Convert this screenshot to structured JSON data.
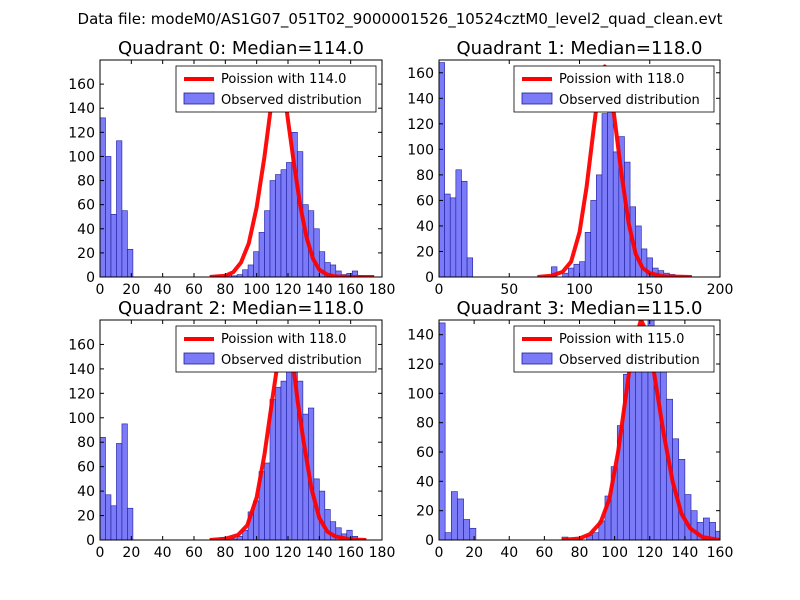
{
  "suptitle": "Data file: modeM0/AS1G07_051T02_9000001526_10524cztM0_level2_quad_clean.evt",
  "colors": {
    "bar_fill": "#7b7bf7",
    "bar_edge": "#1c1ca0",
    "line": "#ff0000",
    "axis": "#000000"
  },
  "chart_data": [
    {
      "type": "bar",
      "title": "Quadrant 0: Median=114.0",
      "median": 114.0,
      "legend": {
        "line_label": "Poission with 114.0",
        "bar_label": "Observed distribution",
        "placement": "top-right"
      },
      "xlim": [
        0,
        180
      ],
      "ylim": [
        0,
        180
      ],
      "xticks": [
        0,
        20,
        40,
        60,
        80,
        100,
        120,
        140,
        160,
        180
      ],
      "yticks": [
        0,
        20,
        40,
        60,
        80,
        100,
        120,
        140,
        160
      ],
      "bin_width": 3.5,
      "bins": [
        [
          0,
          132
        ],
        [
          3.5,
          100
        ],
        [
          7,
          52
        ],
        [
          10.5,
          113
        ],
        [
          14,
          55
        ],
        [
          17.5,
          23
        ],
        [
          73.5,
          1
        ],
        [
          80.5,
          2
        ],
        [
          84,
          1
        ],
        [
          87.5,
          2
        ],
        [
          91,
          6
        ],
        [
          94.5,
          10
        ],
        [
          98,
          21
        ],
        [
          101.5,
          37
        ],
        [
          105,
          55
        ],
        [
          108.5,
          80
        ],
        [
          112,
          85
        ],
        [
          115.5,
          89
        ],
        [
          119,
          95
        ],
        [
          122.5,
          120
        ],
        [
          126,
          104
        ],
        [
          129.5,
          60
        ],
        [
          133,
          55
        ],
        [
          136.5,
          40
        ],
        [
          140,
          21
        ],
        [
          143.5,
          12
        ],
        [
          147,
          10
        ],
        [
          150.5,
          5
        ],
        [
          154,
          2
        ],
        [
          157.5,
          3
        ],
        [
          161,
          5
        ],
        [
          164.5,
          1
        ]
      ],
      "poisson": [
        [
          70,
          0
        ],
        [
          80,
          1
        ],
        [
          85,
          4
        ],
        [
          90,
          12
        ],
        [
          95,
          28
        ],
        [
          100,
          58
        ],
        [
          105,
          100
        ],
        [
          108,
          130
        ],
        [
          111,
          160
        ],
        [
          114,
          172
        ],
        [
          117,
          160
        ],
        [
          120,
          130
        ],
        [
          124,
          92
        ],
        [
          128,
          58
        ],
        [
          132,
          32
        ],
        [
          136,
          15
        ],
        [
          140,
          6
        ],
        [
          145,
          2
        ],
        [
          150,
          0.5
        ],
        [
          160,
          0
        ],
        [
          175,
          0
        ]
      ]
    },
    {
      "type": "bar",
      "title": "Quadrant 1: Median=118.0",
      "median": 118.0,
      "legend": {
        "line_label": "Poission with 118.0",
        "bar_label": "Observed distribution",
        "placement": "top-right"
      },
      "xlim": [
        0,
        200
      ],
      "ylim": [
        0,
        170
      ],
      "xticks": [
        0,
        50,
        100,
        150,
        200
      ],
      "yticks": [
        0,
        20,
        40,
        60,
        80,
        100,
        120,
        140,
        160
      ],
      "bin_width": 4,
      "bins": [
        [
          0,
          168
        ],
        [
          4,
          65
        ],
        [
          8,
          62
        ],
        [
          12,
          84
        ],
        [
          16,
          75
        ],
        [
          20,
          15
        ],
        [
          80,
          8
        ],
        [
          88,
          3
        ],
        [
          92,
          7
        ],
        [
          96,
          10
        ],
        [
          100,
          12
        ],
        [
          104,
          35
        ],
        [
          108,
          60
        ],
        [
          112,
          80
        ],
        [
          116,
          128
        ],
        [
          120,
          160
        ],
        [
          124,
          98
        ],
        [
          128,
          110
        ],
        [
          132,
          90
        ],
        [
          136,
          55
        ],
        [
          140,
          40
        ],
        [
          144,
          22
        ],
        [
          148,
          15
        ],
        [
          152,
          7
        ],
        [
          156,
          5
        ],
        [
          160,
          3
        ],
        [
          164,
          2
        ],
        [
          168,
          1
        ],
        [
          172,
          1
        ]
      ],
      "poisson": [
        [
          70,
          0
        ],
        [
          80,
          1
        ],
        [
          88,
          4
        ],
        [
          94,
          12
        ],
        [
          100,
          35
        ],
        [
          105,
          70
        ],
        [
          110,
          115
        ],
        [
          114,
          150
        ],
        [
          118,
          165
        ],
        [
          122,
          150
        ],
        [
          126,
          115
        ],
        [
          130,
          80
        ],
        [
          135,
          42
        ],
        [
          140,
          18
        ],
        [
          145,
          7
        ],
        [
          150,
          3
        ],
        [
          160,
          0.5
        ],
        [
          180,
          0
        ]
      ]
    },
    {
      "type": "bar",
      "title": "Quadrant 2: Median=118.0",
      "median": 118.0,
      "legend": {
        "line_label": "Poission with 118.0",
        "bar_label": "Observed distribution",
        "placement": "top-right"
      },
      "xlim": [
        0,
        180
      ],
      "ylim": [
        0,
        180
      ],
      "xticks": [
        0,
        20,
        40,
        60,
        80,
        100,
        120,
        140,
        160,
        180
      ],
      "yticks": [
        0,
        20,
        40,
        60,
        80,
        100,
        120,
        140,
        160
      ],
      "bin_width": 3.5,
      "bins": [
        [
          0,
          84
        ],
        [
          3.5,
          37
        ],
        [
          7,
          28
        ],
        [
          10.5,
          79
        ],
        [
          14,
          95
        ],
        [
          17.5,
          26
        ],
        [
          77,
          2
        ],
        [
          84,
          1
        ],
        [
          87.5,
          3
        ],
        [
          91,
          8
        ],
        [
          94.5,
          23
        ],
        [
          98,
          32
        ],
        [
          101.5,
          56
        ],
        [
          105,
          63
        ],
        [
          108.5,
          115
        ],
        [
          112,
          125
        ],
        [
          115.5,
          130
        ],
        [
          119,
          155
        ],
        [
          122.5,
          150
        ],
        [
          126,
          130
        ],
        [
          129.5,
          103
        ],
        [
          133,
          108
        ],
        [
          136.5,
          50
        ],
        [
          140,
          40
        ],
        [
          143.5,
          25
        ],
        [
          147,
          15
        ],
        [
          150.5,
          10
        ],
        [
          154,
          5
        ],
        [
          157.5,
          8
        ],
        [
          161,
          3
        ]
      ],
      "poisson": [
        [
          70,
          0
        ],
        [
          80,
          1
        ],
        [
          88,
          4
        ],
        [
          94,
          12
        ],
        [
          100,
          35
        ],
        [
          105,
          70
        ],
        [
          110,
          115
        ],
        [
          114,
          150
        ],
        [
          118,
          172
        ],
        [
          122,
          158
        ],
        [
          126,
          115
        ],
        [
          130,
          80
        ],
        [
          135,
          42
        ],
        [
          140,
          18
        ],
        [
          145,
          7
        ],
        [
          150,
          3
        ],
        [
          160,
          0.5
        ],
        [
          170,
          0
        ]
      ]
    },
    {
      "type": "bar",
      "title": "Quadrant 3: Median=115.0",
      "median": 115.0,
      "legend": {
        "line_label": "Poission with 115.0",
        "bar_label": "Observed distribution",
        "placement": "top-right"
      },
      "xlim": [
        0,
        160
      ],
      "ylim": [
        0,
        150
      ],
      "xticks": [
        0,
        20,
        40,
        60,
        80,
        100,
        120,
        140,
        160
      ],
      "yticks": [
        0,
        20,
        40,
        60,
        80,
        100,
        120,
        140
      ],
      "bin_width": 3.5,
      "bins": [
        [
          0,
          148
        ],
        [
          3.5,
          5
        ],
        [
          7,
          33
        ],
        [
          10.5,
          28
        ],
        [
          14,
          14
        ],
        [
          17.5,
          8
        ],
        [
          70,
          2
        ],
        [
          84,
          3
        ],
        [
          87.5,
          5
        ],
        [
          91,
          13
        ],
        [
          94.5,
          30
        ],
        [
          98,
          50
        ],
        [
          101.5,
          78
        ],
        [
          105,
          113
        ],
        [
          108.5,
          120
        ],
        [
          112,
          145
        ],
        [
          115.5,
          135
        ],
        [
          119,
          150
        ],
        [
          122.5,
          128
        ],
        [
          126,
          120
        ],
        [
          129.5,
          96
        ],
        [
          133,
          69
        ],
        [
          136.5,
          55
        ],
        [
          140,
          31
        ],
        [
          143.5,
          20
        ],
        [
          147,
          12
        ],
        [
          150.5,
          15
        ],
        [
          154,
          12
        ],
        [
          157.5,
          6
        ]
      ],
      "poisson": [
        [
          70,
          0
        ],
        [
          80,
          1
        ],
        [
          86,
          4
        ],
        [
          92,
          12
        ],
        [
          97,
          28
        ],
        [
          102,
          60
        ],
        [
          106,
          95
        ],
        [
          110,
          130
        ],
        [
          115,
          150
        ],
        [
          119,
          140
        ],
        [
          123,
          110
        ],
        [
          128,
          72
        ],
        [
          133,
          40
        ],
        [
          138,
          18
        ],
        [
          143,
          8
        ],
        [
          150,
          2
        ],
        [
          160,
          0
        ]
      ]
    }
  ]
}
